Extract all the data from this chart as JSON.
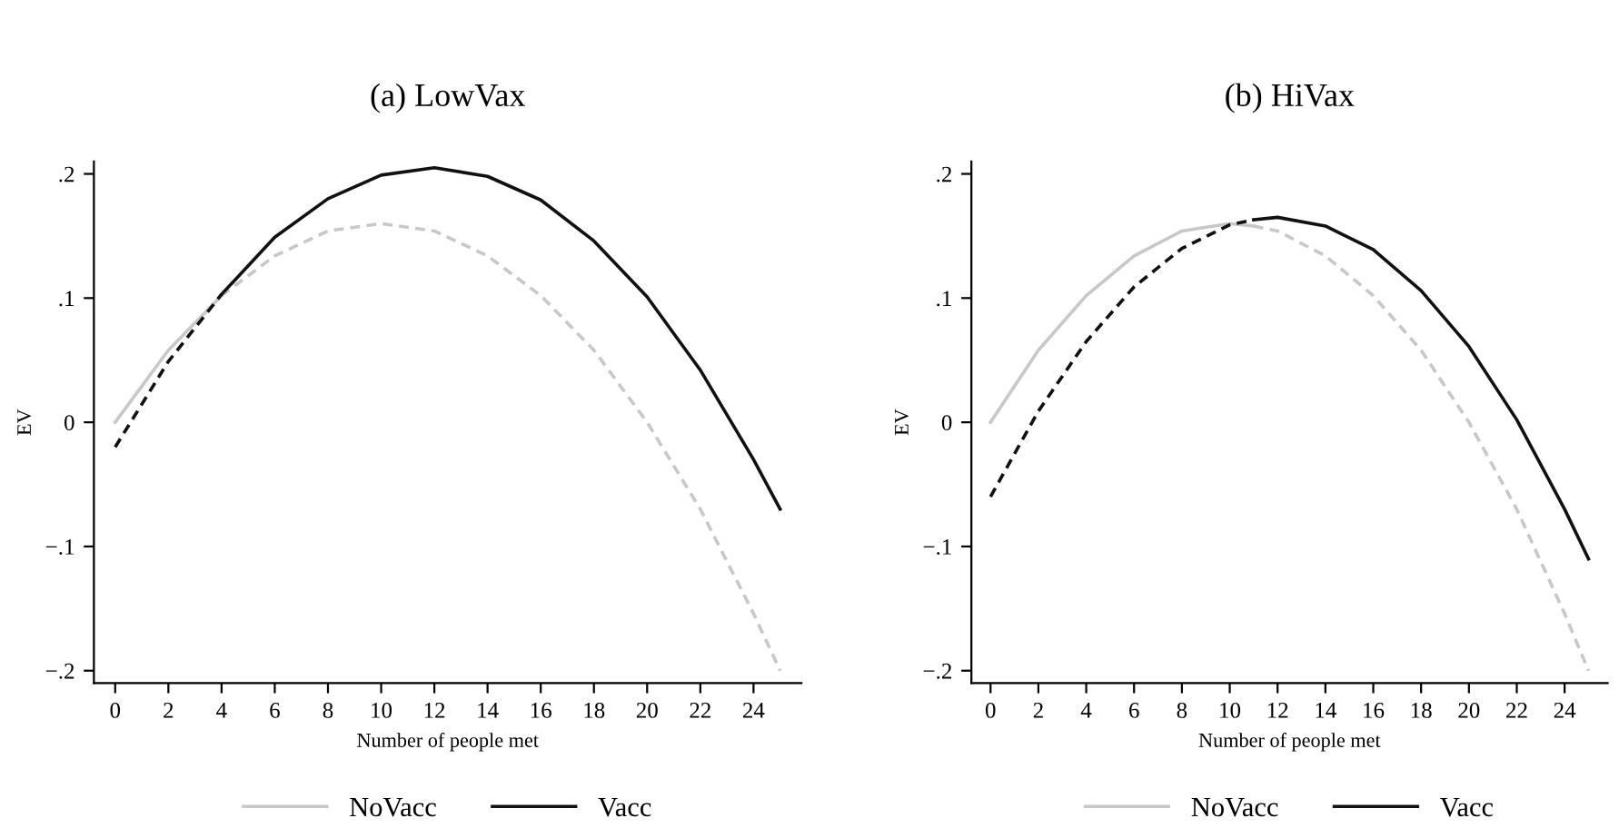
{
  "chart_data": [
    {
      "type": "line",
      "title": "(a) LowVax",
      "xlabel": "Number of people met",
      "ylabel": "EV",
      "xlim": [
        -0.8,
        25.8
      ],
      "xticks": [
        0,
        2,
        4,
        6,
        8,
        10,
        12,
        14,
        16,
        18,
        20,
        22,
        24
      ],
      "ylim": [
        -0.21,
        0.21
      ],
      "yticks": [
        {
          "value": -0.2,
          "label": "−.2"
        },
        {
          "value": -0.1,
          "label": "−.1"
        },
        0,
        {
          "value": 0.1,
          "label": ".1"
        },
        {
          "value": 0.2,
          "label": ".2"
        }
      ],
      "grid": false,
      "legend": "bottom",
      "marker": "none",
      "series": [
        {
          "name": "NoVacc",
          "color": "#c8c8c8",
          "line_style": "solid",
          "x": [
            0,
            2,
            4
          ],
          "values": [
            0,
            0.058,
            0.102
          ]
        },
        {
          "color": "#c8c8c8",
          "line_style": "dashed",
          "x": [
            4,
            6,
            8,
            10,
            12,
            14,
            16,
            18,
            20,
            22,
            24,
            25
          ],
          "values": [
            0.102,
            0.134,
            0.154,
            0.16,
            0.154,
            0.134,
            0.102,
            0.058,
            0,
            -0.07,
            -0.154,
            -0.2
          ]
        },
        {
          "color": "#111111",
          "line_style": "dashed",
          "x": [
            0,
            2,
            4
          ],
          "values": [
            -0.02,
            0.049,
            0.103
          ]
        },
        {
          "name": "Vacc",
          "color": "#111111",
          "line_style": "solid",
          "x": [
            4,
            6,
            8,
            10,
            12,
            14,
            16,
            18,
            20,
            22,
            24,
            25
          ],
          "values": [
            0.103,
            0.149,
            0.18,
            0.199,
            0.205,
            0.198,
            0.179,
            0.146,
            0.101,
            0.042,
            -0.03,
            -0.07
          ]
        }
      ]
    },
    {
      "type": "line",
      "title": "(b) HiVax",
      "xlabel": "Number of people met",
      "ylabel": "EV",
      "xlim": [
        -0.8,
        25.8
      ],
      "xticks": [
        0,
        2,
        4,
        6,
        8,
        10,
        12,
        14,
        16,
        18,
        20,
        22,
        24
      ],
      "ylim": [
        -0.21,
        0.21
      ],
      "yticks": [
        {
          "value": -0.2,
          "label": "−.2"
        },
        {
          "value": -0.1,
          "label": "−.1"
        },
        0,
        {
          "value": 0.1,
          "label": ".1"
        },
        {
          "value": 0.2,
          "label": ".2"
        }
      ],
      "grid": false,
      "legend": "bottom",
      "marker": "none",
      "series": [
        {
          "name": "NoVacc",
          "color": "#c8c8c8",
          "line_style": "solid",
          "x": [
            0,
            2,
            4,
            6,
            8,
            10,
            11
          ],
          "values": [
            0,
            0.058,
            0.102,
            0.134,
            0.154,
            0.16,
            0.158
          ]
        },
        {
          "color": "#c8c8c8",
          "line_style": "dashed",
          "x": [
            11,
            12,
            14,
            16,
            18,
            20,
            22,
            24,
            25
          ],
          "values": [
            0.158,
            0.154,
            0.134,
            0.102,
            0.058,
            0,
            -0.07,
            -0.154,
            -0.2
          ]
        },
        {
          "color": "#111111",
          "line_style": "dashed",
          "x": [
            0,
            2,
            4,
            6,
            8,
            10,
            11
          ],
          "values": [
            -0.06,
            0.009,
            0.065,
            0.109,
            0.14,
            0.159,
            0.163
          ]
        },
        {
          "name": "Vacc",
          "color": "#111111",
          "line_style": "solid",
          "x": [
            11,
            12,
            14,
            16,
            18,
            20,
            22,
            24,
            25
          ],
          "values": [
            0.163,
            0.165,
            0.158,
            0.139,
            0.106,
            0.061,
            0.002,
            -0.07,
            -0.11
          ]
        }
      ]
    }
  ]
}
